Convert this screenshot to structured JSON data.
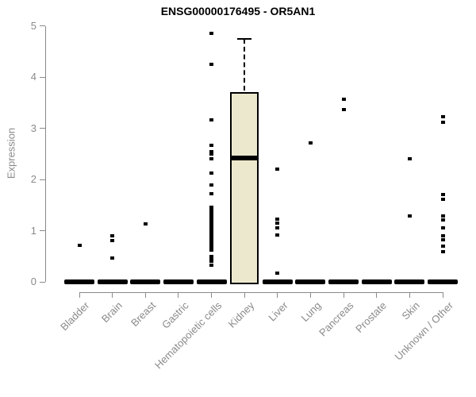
{
  "y_axis": {
    "ticks": [
      "0",
      "1",
      "2",
      "3",
      "4",
      "5"
    ]
  },
  "colors": {
    "box_fill": "#ece8cd",
    "box_stroke": "#000000",
    "median": "#000000",
    "point": "#000000",
    "axis": "#8a8a8a",
    "title": "#000000",
    "background": "#ffffff"
  },
  "chart_data": {
    "type": "boxplot",
    "title": "ENSG00000176495 - OR5AN1",
    "xlabel": "",
    "ylabel": "Expression",
    "ylim": [
      0,
      5
    ],
    "grid": false,
    "series": [
      {
        "name": "Bladder",
        "q1": 0,
        "median": 0,
        "q3": 0,
        "whisker_low": 0,
        "whisker_high": 0,
        "outliers": [
          0.72
        ]
      },
      {
        "name": "Brain",
        "q1": 0,
        "median": 0,
        "q3": 0,
        "whisker_low": 0,
        "whisker_high": 0,
        "outliers": [
          0.9,
          0.81,
          0.47
        ]
      },
      {
        "name": "Breast",
        "q1": 0,
        "median": 0,
        "q3": 0,
        "whisker_low": 0,
        "whisker_high": 0,
        "outliers": [
          1.13
        ]
      },
      {
        "name": "Gastric",
        "q1": 0,
        "median": 0,
        "q3": 0,
        "whisker_low": 0,
        "whisker_high": 0,
        "outliers": []
      },
      {
        "name": "Hematopoietic cells",
        "q1": 0,
        "median": 0,
        "q3": 0,
        "whisker_low": 0,
        "whisker_high": 0,
        "outliers": [
          4.85,
          4.25,
          3.17,
          2.67,
          2.55,
          2.5,
          2.4,
          2.12,
          1.89,
          1.72,
          1.45,
          1.42,
          1.39,
          1.36,
          1.33,
          1.3,
          1.27,
          1.24,
          1.21,
          1.18,
          1.15,
          1.12,
          1.09,
          1.06,
          1.03,
          1.0,
          0.97,
          0.94,
          0.91,
          0.88,
          0.85,
          0.82,
          0.79,
          0.76,
          0.73,
          0.7,
          0.67,
          0.64,
          0.62,
          0.5,
          0.45,
          0.4,
          0.33
        ]
      },
      {
        "name": "Kidney",
        "q1": 0,
        "median": 2.42,
        "q3": 3.7,
        "whisker_low": 0,
        "whisker_high": 4.74,
        "outliers": []
      },
      {
        "name": "Liver",
        "q1": 0,
        "median": 0,
        "q3": 0,
        "whisker_low": 0,
        "whisker_high": 0,
        "outliers": [
          2.2,
          1.22,
          1.14,
          1.06,
          0.92,
          0.17
        ]
      },
      {
        "name": "Lung",
        "q1": 0,
        "median": 0,
        "q3": 0,
        "whisker_low": 0,
        "whisker_high": 0,
        "outliers": [
          2.72
        ]
      },
      {
        "name": "Pancreas",
        "q1": 0,
        "median": 0,
        "q3": 0,
        "whisker_low": 0,
        "whisker_high": 0,
        "outliers": [
          3.56,
          3.36
        ]
      },
      {
        "name": "Prostate",
        "q1": 0,
        "median": 0,
        "q3": 0,
        "whisker_low": 0,
        "whisker_high": 0,
        "outliers": []
      },
      {
        "name": "Skin",
        "q1": 0,
        "median": 0,
        "q3": 0,
        "whisker_low": 0,
        "whisker_high": 0,
        "outliers": [
          2.4,
          1.28
        ]
      },
      {
        "name": "Unknown / Other",
        "q1": 0,
        "median": 0,
        "q3": 0,
        "whisker_low": 0,
        "whisker_high": 0,
        "outliers": [
          3.22,
          3.12,
          1.7,
          1.62,
          1.29,
          1.21,
          1.06,
          0.9,
          0.82,
          0.7,
          0.59
        ]
      }
    ]
  }
}
